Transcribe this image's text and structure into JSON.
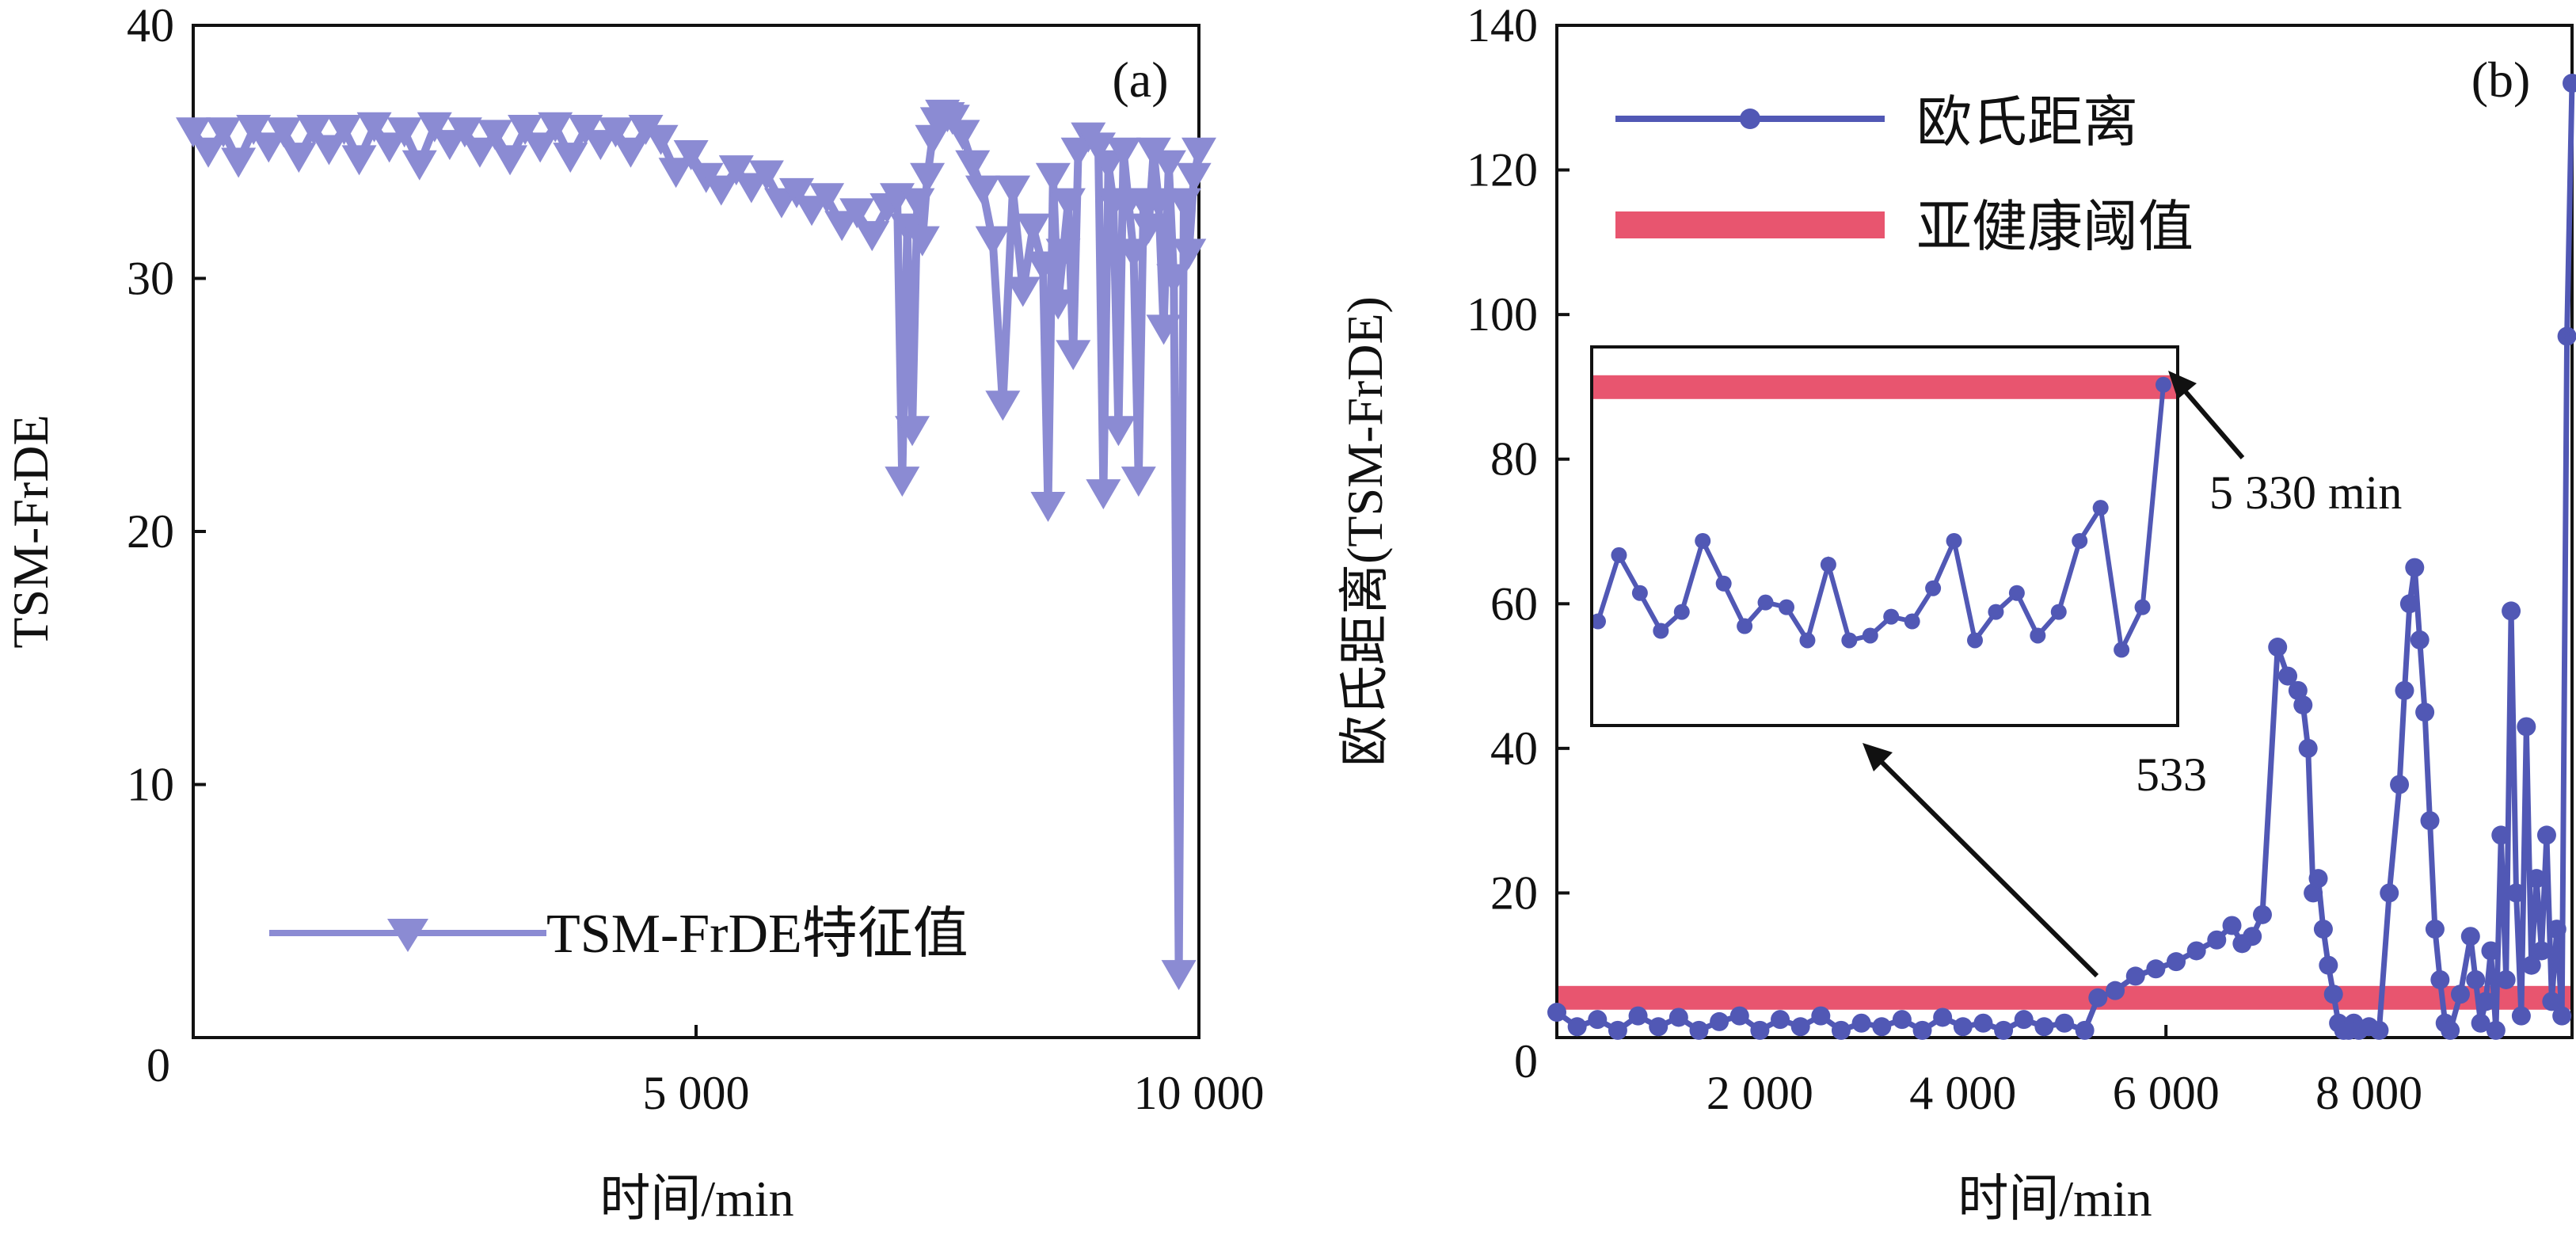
{
  "chart_data": [
    {
      "type": "line",
      "panel_label": "(a)",
      "ylabel": "TSM-FrDE",
      "xlabel": "时间/min",
      "xlim": [
        0,
        10000
      ],
      "ylim": [
        0,
        40
      ],
      "x_ticks": [
        {
          "value": 0,
          "label": "0"
        },
        {
          "value": 5000,
          "label": "5 000"
        },
        {
          "value": 10000,
          "label": "10 000"
        }
      ],
      "y_ticks": [
        {
          "value": 10,
          "label": "10"
        },
        {
          "value": 20,
          "label": "20"
        },
        {
          "value": 30,
          "label": "30"
        },
        {
          "value": 40,
          "label": "40"
        }
      ],
      "legend": "TSM-FrDE特征值",
      "color": "#8B8BD3",
      "series": [
        {
          "name": "TSM-FrDE特征值",
          "x": [
            0,
            150,
            300,
            450,
            600,
            750,
            900,
            1050,
            1200,
            1350,
            1500,
            1650,
            1800,
            1950,
            2100,
            2250,
            2400,
            2550,
            2700,
            2850,
            3000,
            3150,
            3300,
            3450,
            3600,
            3750,
            3900,
            4050,
            4200,
            4350,
            4500,
            4650,
            4800,
            4950,
            5100,
            5250,
            5400,
            5550,
            5700,
            5850,
            6000,
            6150,
            6300,
            6450,
            6600,
            6750,
            6900,
            7000,
            7050,
            7100,
            7150,
            7200,
            7250,
            7300,
            7350,
            7400,
            7450,
            7500,
            7550,
            7650,
            7750,
            7850,
            7950,
            8050,
            8150,
            8250,
            8350,
            8450,
            8500,
            8550,
            8600,
            8650,
            8700,
            8750,
            8800,
            8900,
            9000,
            9050,
            9100,
            9150,
            9200,
            9250,
            9300,
            9350,
            9400,
            9450,
            9500,
            9550,
            9600,
            9650,
            9700,
            9750,
            9800,
            9850,
            9900,
            9950,
            10000
          ],
          "y": [
            35.8,
            35.0,
            35.8,
            34.6,
            35.9,
            35.2,
            35.8,
            34.8,
            35.9,
            35.1,
            35.9,
            34.7,
            36.0,
            35.2,
            35.8,
            34.5,
            36.0,
            35.3,
            35.8,
            35.0,
            35.7,
            34.7,
            35.9,
            35.2,
            36.0,
            34.8,
            35.9,
            35.3,
            35.8,
            35.0,
            35.9,
            35.5,
            34.2,
            34.9,
            34.0,
            33.5,
            34.3,
            33.6,
            34.1,
            33.0,
            33.4,
            32.7,
            33.2,
            32.1,
            32.6,
            31.7,
            32.8,
            33.2,
            22.0,
            32.0,
            24.0,
            33.0,
            31.5,
            34.0,
            35.5,
            36.2,
            36.5,
            36.4,
            36.3,
            35.7,
            34.5,
            33.5,
            31.5,
            25.0,
            33.5,
            29.5,
            32.0,
            30.5,
            21.0,
            34.0,
            29.0,
            31.0,
            33.0,
            27.0,
            35.0,
            35.6,
            35.2,
            21.5,
            34.5,
            33.0,
            24.0,
            35.0,
            33.0,
            31.0,
            22.0,
            33.0,
            32.0,
            35.0,
            33.0,
            28.0,
            34.5,
            30.0,
            2.5,
            33.0,
            31.0,
            34.0,
            35.0
          ]
        }
      ]
    },
    {
      "type": "line",
      "panel_label": "(b)",
      "ylabel": "欧氏距离(TSM-FrDE)",
      "xlabel": "时间/min",
      "xlim": [
        0,
        10000
      ],
      "ylim": [
        0,
        140
      ],
      "x_ticks": [
        {
          "value": 2000,
          "label": "2 000"
        },
        {
          "value": 4000,
          "label": "4 000"
        },
        {
          "value": 6000,
          "label": "6 000"
        },
        {
          "value": 8000,
          "label": "8 000"
        }
      ],
      "y_ticks": [
        {
          "value": 0,
          "label": "0"
        },
        {
          "value": 20,
          "label": "20"
        },
        {
          "value": 40,
          "label": "40"
        },
        {
          "value": 60,
          "label": "60"
        },
        {
          "value": 80,
          "label": "80"
        },
        {
          "value": 100,
          "label": "100"
        },
        {
          "value": 120,
          "label": "120"
        },
        {
          "value": 140,
          "label": "140"
        }
      ],
      "legend": [
        "欧氏距离",
        "亚健康阈值"
      ],
      "threshold": 5.5,
      "threshold_color": "#E8556F",
      "line_color": "#5158B5",
      "series": [
        {
          "name": "欧氏距离",
          "x": [
            0,
            200,
            400,
            600,
            800,
            1000,
            1200,
            1400,
            1600,
            1800,
            2000,
            2200,
            2400,
            2600,
            2800,
            3000,
            3200,
            3400,
            3600,
            3800,
            4000,
            4200,
            4400,
            4600,
            4800,
            5000,
            5200,
            5330,
            5500,
            5700,
            5900,
            6100,
            6300,
            6500,
            6650,
            6750,
            6850,
            6950,
            7100,
            7200,
            7300,
            7350,
            7400,
            7450,
            7500,
            7550,
            7600,
            7650,
            7700,
            7750,
            7800,
            7850,
            7900,
            8000,
            8100,
            8200,
            8300,
            8350,
            8400,
            8450,
            8500,
            8550,
            8600,
            8650,
            8700,
            8750,
            8800,
            8900,
            9000,
            9050,
            9100,
            9150,
            9200,
            9250,
            9300,
            9350,
            9400,
            9450,
            9500,
            9550,
            9600,
            9650,
            9700,
            9750,
            9800,
            9850,
            9900,
            9950,
            10000
          ],
          "y": [
            3.5,
            1.5,
            2.5,
            1.0,
            3.0,
            1.5,
            2.8,
            1.0,
            2.2,
            3.0,
            1.0,
            2.5,
            1.5,
            3.0,
            1.0,
            2.0,
            1.5,
            2.5,
            1.0,
            2.8,
            1.5,
            2.0,
            1.0,
            2.5,
            1.5,
            2.0,
            1.0,
            5.5,
            6.5,
            8.5,
            9.5,
            10.5,
            12.0,
            13.5,
            15.5,
            13.0,
            14.0,
            17.0,
            54.0,
            50.0,
            48.0,
            46.0,
            40.0,
            20.0,
            22.0,
            15.0,
            10.0,
            6.0,
            2.0,
            1.0,
            1.0,
            2.0,
            1.0,
            1.5,
            1.0,
            20.0,
            35.0,
            48.0,
            60.0,
            65.0,
            55.0,
            45.0,
            30.0,
            15.0,
            8.0,
            2.0,
            1.0,
            6.0,
            14.0,
            8.0,
            2.0,
            5.0,
            12.0,
            1.0,
            28.0,
            8.0,
            59.0,
            20.0,
            3.0,
            43.0,
            10.0,
            22.0,
            12.0,
            28.0,
            5.0,
            15.0,
            3.0,
            97.0,
            132.0
          ]
        }
      ],
      "inset": {
        "tick_label": "533",
        "annotation": "5 330 min",
        "line_y": [
          42,
          56,
          48,
          40,
          44,
          59,
          50,
          41,
          46,
          45,
          38,
          54,
          38,
          39,
          43,
          42,
          49,
          59,
          38,
          44,
          48,
          39,
          44,
          59,
          66,
          36,
          45,
          92
        ]
      }
    }
  ]
}
